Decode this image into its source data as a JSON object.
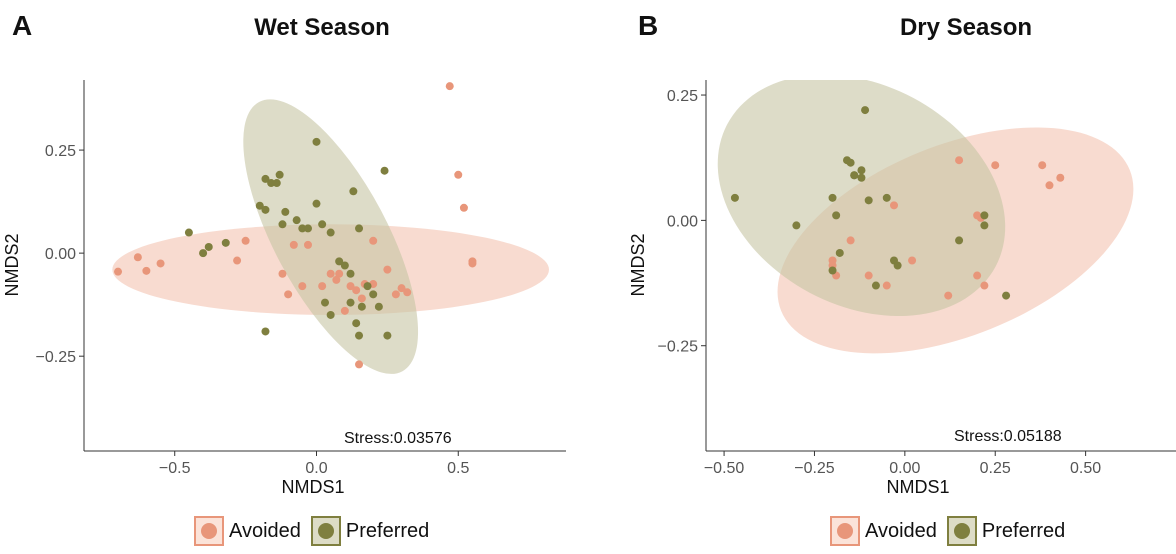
{
  "panel_a": {
    "letter": "A",
    "title": "Wet Season",
    "stress": "Stress:0.03576",
    "xlabel": "NMDS1",
    "ylabel": "NMDS2",
    "xticks": [
      "−0.5",
      "0.0",
      "0.5"
    ],
    "yticks": [
      "0.25",
      "0.00",
      "−0.25"
    ]
  },
  "panel_b": {
    "letter": "B",
    "title": "Dry Season",
    "stress": "Stress:0.05188",
    "xlabel": "NMDS1",
    "ylabel": "NMDS2",
    "xticks": [
      "−0.50",
      "−0.25",
      "0.00",
      "0.25",
      "0.50"
    ],
    "yticks": [
      "0.25",
      "0.00",
      "−0.25"
    ]
  },
  "legend": {
    "items": [
      {
        "label": "Avoided",
        "color": "#E8967A"
      },
      {
        "label": "Preferred",
        "color": "#7F7F3F"
      }
    ]
  },
  "chart_data": [
    {
      "type": "scatter",
      "title": "Wet Season",
      "xlabel": "NMDS1",
      "ylabel": "NMDS2",
      "annotation": "Stress:0.03576",
      "xlim": [
        -0.82,
        0.88
      ],
      "ylim": [
        -0.48,
        0.42
      ],
      "xticks": [
        -0.5,
        0.0,
        0.5
      ],
      "yticks": [
        0.25,
        0.0,
        -0.25
      ],
      "ellipse_fill": {
        "Avoided": "#F4C3B0",
        "Preferred": "#C6C5A4"
      },
      "series": [
        {
          "name": "Avoided",
          "color": "#E8967A",
          "ellipse": {
            "cx": 0.05,
            "cy": -0.04,
            "rx": 0.77,
            "ry": 0.11,
            "angle_deg": 0
          },
          "points": [
            [
              -0.7,
              -0.045
            ],
            [
              -0.63,
              -0.01
            ],
            [
              -0.6,
              -0.043
            ],
            [
              -0.55,
              -0.025
            ],
            [
              -0.28,
              -0.018
            ],
            [
              -0.25,
              0.03
            ],
            [
              -0.12,
              -0.05
            ],
            [
              -0.1,
              -0.1
            ],
            [
              -0.05,
              -0.08
            ],
            [
              0.02,
              -0.08
            ],
            [
              0.05,
              -0.05
            ],
            [
              0.07,
              -0.065
            ],
            [
              0.1,
              -0.14
            ],
            [
              0.12,
              -0.08
            ],
            [
              0.14,
              -0.09
            ],
            [
              0.17,
              -0.075
            ],
            [
              0.2,
              -0.075
            ],
            [
              0.25,
              -0.04
            ],
            [
              0.28,
              -0.1
            ],
            [
              0.3,
              -0.085
            ],
            [
              0.32,
              -0.095
            ],
            [
              0.15,
              -0.27
            ],
            [
              0.47,
              0.405
            ],
            [
              0.5,
              0.19
            ],
            [
              0.52,
              0.11
            ],
            [
              0.55,
              -0.02
            ],
            [
              0.55,
              -0.025
            ],
            [
              0.2,
              0.03
            ],
            [
              -0.08,
              0.02
            ],
            [
              -0.03,
              0.02
            ],
            [
              0.08,
              -0.05
            ],
            [
              0.16,
              -0.11
            ]
          ]
        },
        {
          "name": "Preferred",
          "color": "#7F7F3F",
          "ellipse": {
            "cx": 0.05,
            "cy": 0.04,
            "rx": 0.2,
            "ry": 0.37,
            "angle_deg": 28
          },
          "points": [
            [
              -0.45,
              0.05
            ],
            [
              -0.4,
              0.0
            ],
            [
              -0.38,
              0.015
            ],
            [
              -0.32,
              0.025
            ],
            [
              -0.2,
              0.115
            ],
            [
              -0.18,
              0.18
            ],
            [
              -0.16,
              0.17
            ],
            [
              -0.14,
              0.17
            ],
            [
              -0.13,
              0.19
            ],
            [
              -0.12,
              0.07
            ],
            [
              -0.11,
              0.1
            ],
            [
              -0.07,
              0.08
            ],
            [
              -0.05,
              0.06
            ],
            [
              -0.03,
              0.06
            ],
            [
              0.0,
              0.27
            ],
            [
              0.0,
              0.12
            ],
            [
              0.02,
              0.07
            ],
            [
              0.05,
              0.05
            ],
            [
              0.08,
              -0.02
            ],
            [
              0.1,
              -0.03
            ],
            [
              0.12,
              -0.12
            ],
            [
              0.13,
              0.15
            ],
            [
              0.15,
              0.06
            ],
            [
              0.16,
              -0.13
            ],
            [
              0.18,
              -0.08
            ],
            [
              0.2,
              -0.1
            ],
            [
              0.22,
              -0.13
            ],
            [
              0.24,
              0.2
            ],
            [
              0.25,
              -0.2
            ],
            [
              -0.18,
              -0.19
            ],
            [
              0.12,
              -0.05
            ],
            [
              0.15,
              -0.2
            ],
            [
              0.03,
              -0.12
            ],
            [
              0.05,
              -0.15
            ],
            [
              -0.18,
              0.105
            ],
            [
              0.14,
              -0.17
            ]
          ]
        }
      ]
    },
    {
      "type": "scatter",
      "title": "Dry Season",
      "xlabel": "NMDS1",
      "ylabel": "NMDS2",
      "annotation": "Stress:0.05188",
      "xlim": [
        -0.55,
        0.75
      ],
      "ylim": [
        -0.46,
        0.28
      ],
      "xticks": [
        -0.5,
        -0.25,
        0.0,
        0.25,
        0.5
      ],
      "yticks": [
        0.25,
        0.0,
        -0.25
      ],
      "ellipse_fill": {
        "Avoided": "#F4C3B0",
        "Preferred": "#C6C5A4"
      },
      "series": [
        {
          "name": "Avoided",
          "color": "#E8967A",
          "ellipse": {
            "cx": 0.14,
            "cy": -0.04,
            "rx": 0.52,
            "ry": 0.19,
            "angle_deg": 22
          },
          "points": [
            [
              -0.2,
              -0.09
            ],
            [
              -0.19,
              -0.11
            ],
            [
              -0.15,
              -0.04
            ],
            [
              -0.1,
              -0.11
            ],
            [
              -0.05,
              -0.13
            ],
            [
              -0.03,
              0.03
            ],
            [
              0.02,
              -0.08
            ],
            [
              0.15,
              0.12
            ],
            [
              0.2,
              0.01
            ],
            [
              0.22,
              -0.13
            ],
            [
              0.25,
              0.11
            ],
            [
              0.2,
              -0.11
            ],
            [
              0.38,
              0.11
            ],
            [
              0.4,
              0.07
            ],
            [
              0.43,
              0.085
            ],
            [
              0.12,
              -0.15
            ],
            [
              -0.2,
              -0.08
            ],
            [
              0.21,
              0.005
            ]
          ]
        },
        {
          "name": "Preferred",
          "color": "#7F7F3F",
          "ellipse": {
            "cx": -0.12,
            "cy": 0.05,
            "rx": 0.42,
            "ry": 0.22,
            "angle_deg": -28
          },
          "points": [
            [
              -0.47,
              0.045
            ],
            [
              -0.3,
              -0.01
            ],
            [
              -0.2,
              0.045
            ],
            [
              -0.19,
              0.01
            ],
            [
              -0.18,
              -0.065
            ],
            [
              -0.16,
              0.12
            ],
            [
              -0.15,
              0.115
            ],
            [
              -0.14,
              0.09
            ],
            [
              -0.12,
              0.1
            ],
            [
              -0.12,
              0.085
            ],
            [
              -0.11,
              0.22
            ],
            [
              -0.1,
              0.04
            ],
            [
              -0.08,
              -0.13
            ],
            [
              -0.05,
              0.045
            ],
            [
              -0.03,
              -0.08
            ],
            [
              -0.02,
              -0.09
            ],
            [
              0.15,
              -0.04
            ],
            [
              0.22,
              0.01
            ],
            [
              0.22,
              -0.01
            ],
            [
              0.28,
              -0.15
            ],
            [
              -0.2,
              -0.1
            ],
            [
              -0.14,
              0.09
            ]
          ]
        }
      ]
    }
  ]
}
